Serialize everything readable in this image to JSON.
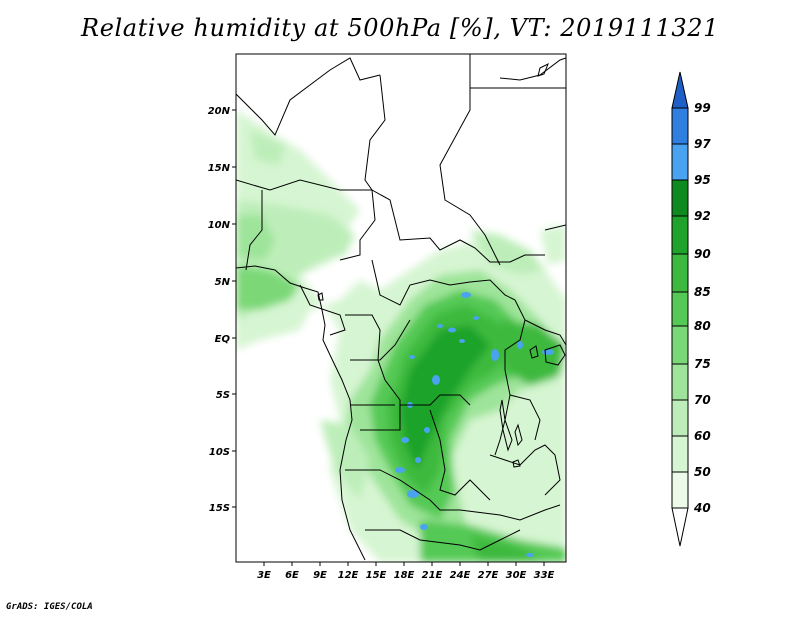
{
  "title": "Relative humidity at 500hPa [%], VT: 2019111321",
  "footer": "GrADS: IGES/COLA",
  "map": {
    "lat_ticks": [
      "20N",
      "15N",
      "10N",
      "5N",
      "EQ",
      "5S",
      "10S",
      "15S"
    ],
    "lon_ticks": [
      "3E",
      "6E",
      "9E",
      "12E",
      "15E",
      "18E",
      "21E",
      "24E",
      "27E",
      "30E",
      "33E"
    ]
  },
  "colorbar": {
    "labels": [
      "99",
      "97",
      "95",
      "92",
      "90",
      "85",
      "80",
      "75",
      "70",
      "60",
      "50",
      "40"
    ],
    "colors": [
      "#1e5fc8",
      "#2e7fe0",
      "#4aa3f0",
      "#0f8a1e",
      "#1fa32a",
      "#3cb93e",
      "#55c955",
      "#7bd877",
      "#9ee49a",
      "#bdeeb9",
      "#d6f5d2",
      "#ecfbe9",
      "#ffffff"
    ]
  }
}
